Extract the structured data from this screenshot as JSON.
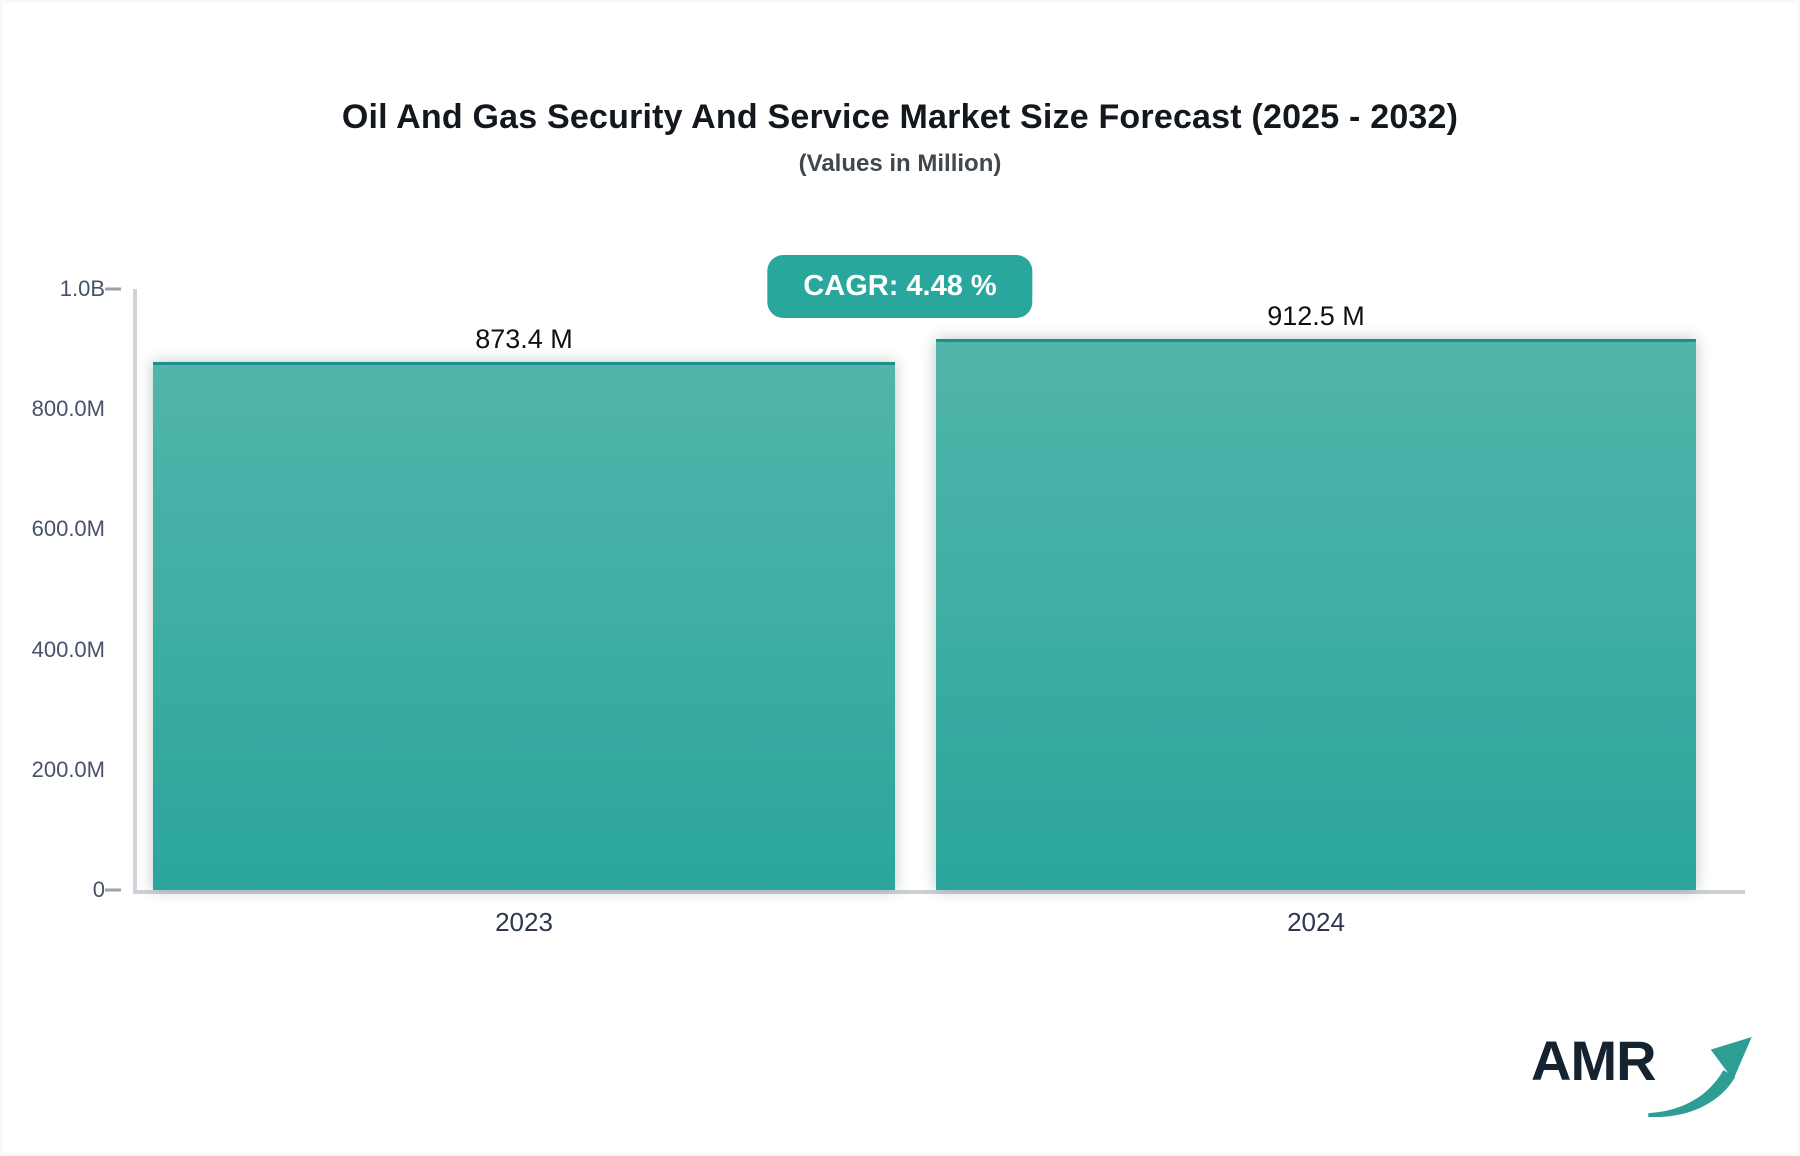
{
  "page": {
    "background": "#f6f8fa",
    "card_background": "#ffffff"
  },
  "header": {
    "title": "Oil And Gas Security And Service Market Size Forecast (2025 - 2032)",
    "subtitle": "(Values in Million)"
  },
  "badge": {
    "label": "CAGR: 4.48 %",
    "background": "#2aa79c",
    "text_color": "#ffffff"
  },
  "chart_data": {
    "type": "bar",
    "title": "Oil And Gas Security And Service Market Size Forecast (2025 - 2032)",
    "subtitle": "(Values in Million)",
    "categories": [
      "2023",
      "2024"
    ],
    "values": [
      873400000,
      912500000
    ],
    "value_labels": [
      "873.4 M",
      "912.5 M"
    ],
    "cagr_percent": 4.48,
    "xlabel": "",
    "ylabel": "",
    "ylim": [
      0,
      1000000000
    ],
    "y_ticks": [
      "1.0B",
      "800.0M",
      "600.0M",
      "400.0M",
      "200.0M",
      "0"
    ],
    "grid": false,
    "legend": false,
    "bar_color_top": "#52b5ab",
    "bar_color_bottom": "#2ba69b",
    "bar_border_top": "#1b9189",
    "axis_line_color": "#cfd4db",
    "tick_label_color": "#47516b"
  },
  "logo": {
    "text": "AMR",
    "arrow_color": "#2e9d94",
    "text_color": "#152230"
  }
}
